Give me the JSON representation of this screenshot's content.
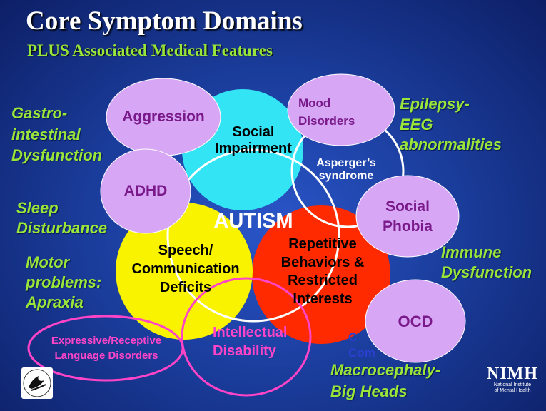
{
  "header": {
    "title": "Core Symptom Domains",
    "subtitle": "PLUS Associated Medical Features"
  },
  "core": {
    "center_label": "AUTISM",
    "social_label": "Social\nImpairment",
    "speech_label": "Speech/\nCommunication\nDeficits",
    "repetitive_label": "Repetitive\nBehaviors &\nRestricted\nInterests",
    "aspergers_label": "Asperger’s\nsyndrome"
  },
  "bubbles": {
    "aggression": "Aggression",
    "mood": "Mood\nDisorders",
    "adhd": "ADHD",
    "social_phobia": "Social\nPhobia",
    "ocd": "OCD"
  },
  "outlined": {
    "language": "Expressive/Receptive\nLanguage Disorders",
    "intellectual": "Intellectual\nDisability",
    "hidden_fragment": "C\nCom"
  },
  "features": {
    "gi": "Gastro-\nintestinal\nDysfunction",
    "sleep": "Sleep\nDisturbance",
    "motor": "Motor\nproblems:\nApraxia",
    "epilepsy": "Epilepsy-\nEEG\nabnormalities",
    "immune": "Immune\nDysfunction",
    "macro": "Macrocephaly-\nBig Heads"
  },
  "logo": {
    "nimh": "NIMH",
    "nimh_name": "National Institute\nof Mental Health"
  },
  "colors": {
    "cyan": "#33e5f4",
    "yellow": "#f9f300",
    "red": "#ff2a00",
    "lavender": "#d7a6f5",
    "feature_green": "#99e63b",
    "purple_text": "#7a1a8a",
    "magenta_outline": "#ff44c8"
  }
}
